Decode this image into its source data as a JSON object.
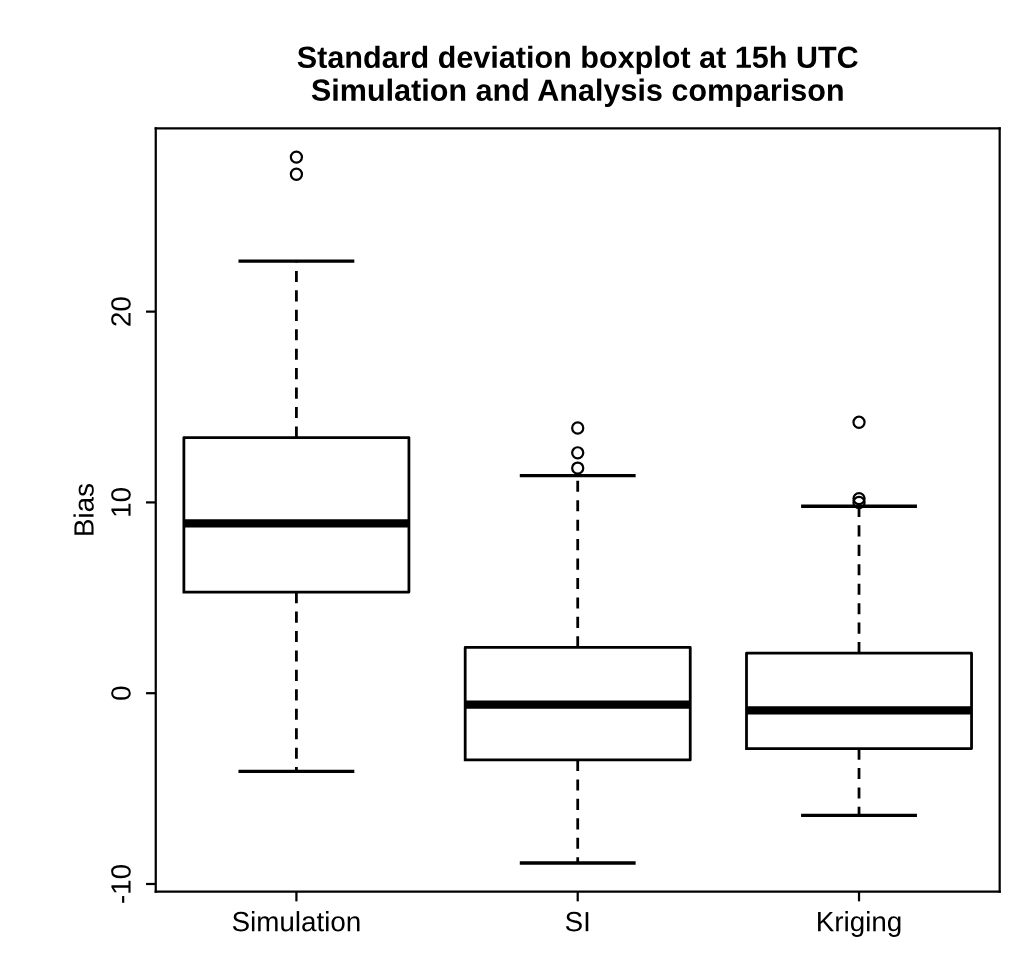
{
  "chart_data": {
    "type": "box",
    "title": "Standard deviation boxplot at 15h UTC\nSimulation and Analysis comparison",
    "ylabel": "Bias",
    "categories": [
      "Simulation",
      "SI",
      "Kriging"
    ],
    "boxes": [
      {
        "low": -4.1,
        "q1": 5.3,
        "median": 8.9,
        "q3": 13.4,
        "high": 22.65,
        "outliers": [
          27.2,
          28.1
        ]
      },
      {
        "low": -8.9,
        "q1": -3.5,
        "median": -0.6,
        "q3": 2.4,
        "high": 11.4,
        "outliers": [
          11.8,
          12.6,
          13.9
        ]
      },
      {
        "low": -6.4,
        "q1": -2.9,
        "median": -0.9,
        "q3": 2.1,
        "high": 9.8,
        "outliers": [
          10.0,
          10.2,
          14.2
        ]
      }
    ],
    "ylim": [
      -10.4,
      29.6
    ],
    "yticks": [
      -10,
      0,
      10,
      20
    ],
    "grid": false
  }
}
